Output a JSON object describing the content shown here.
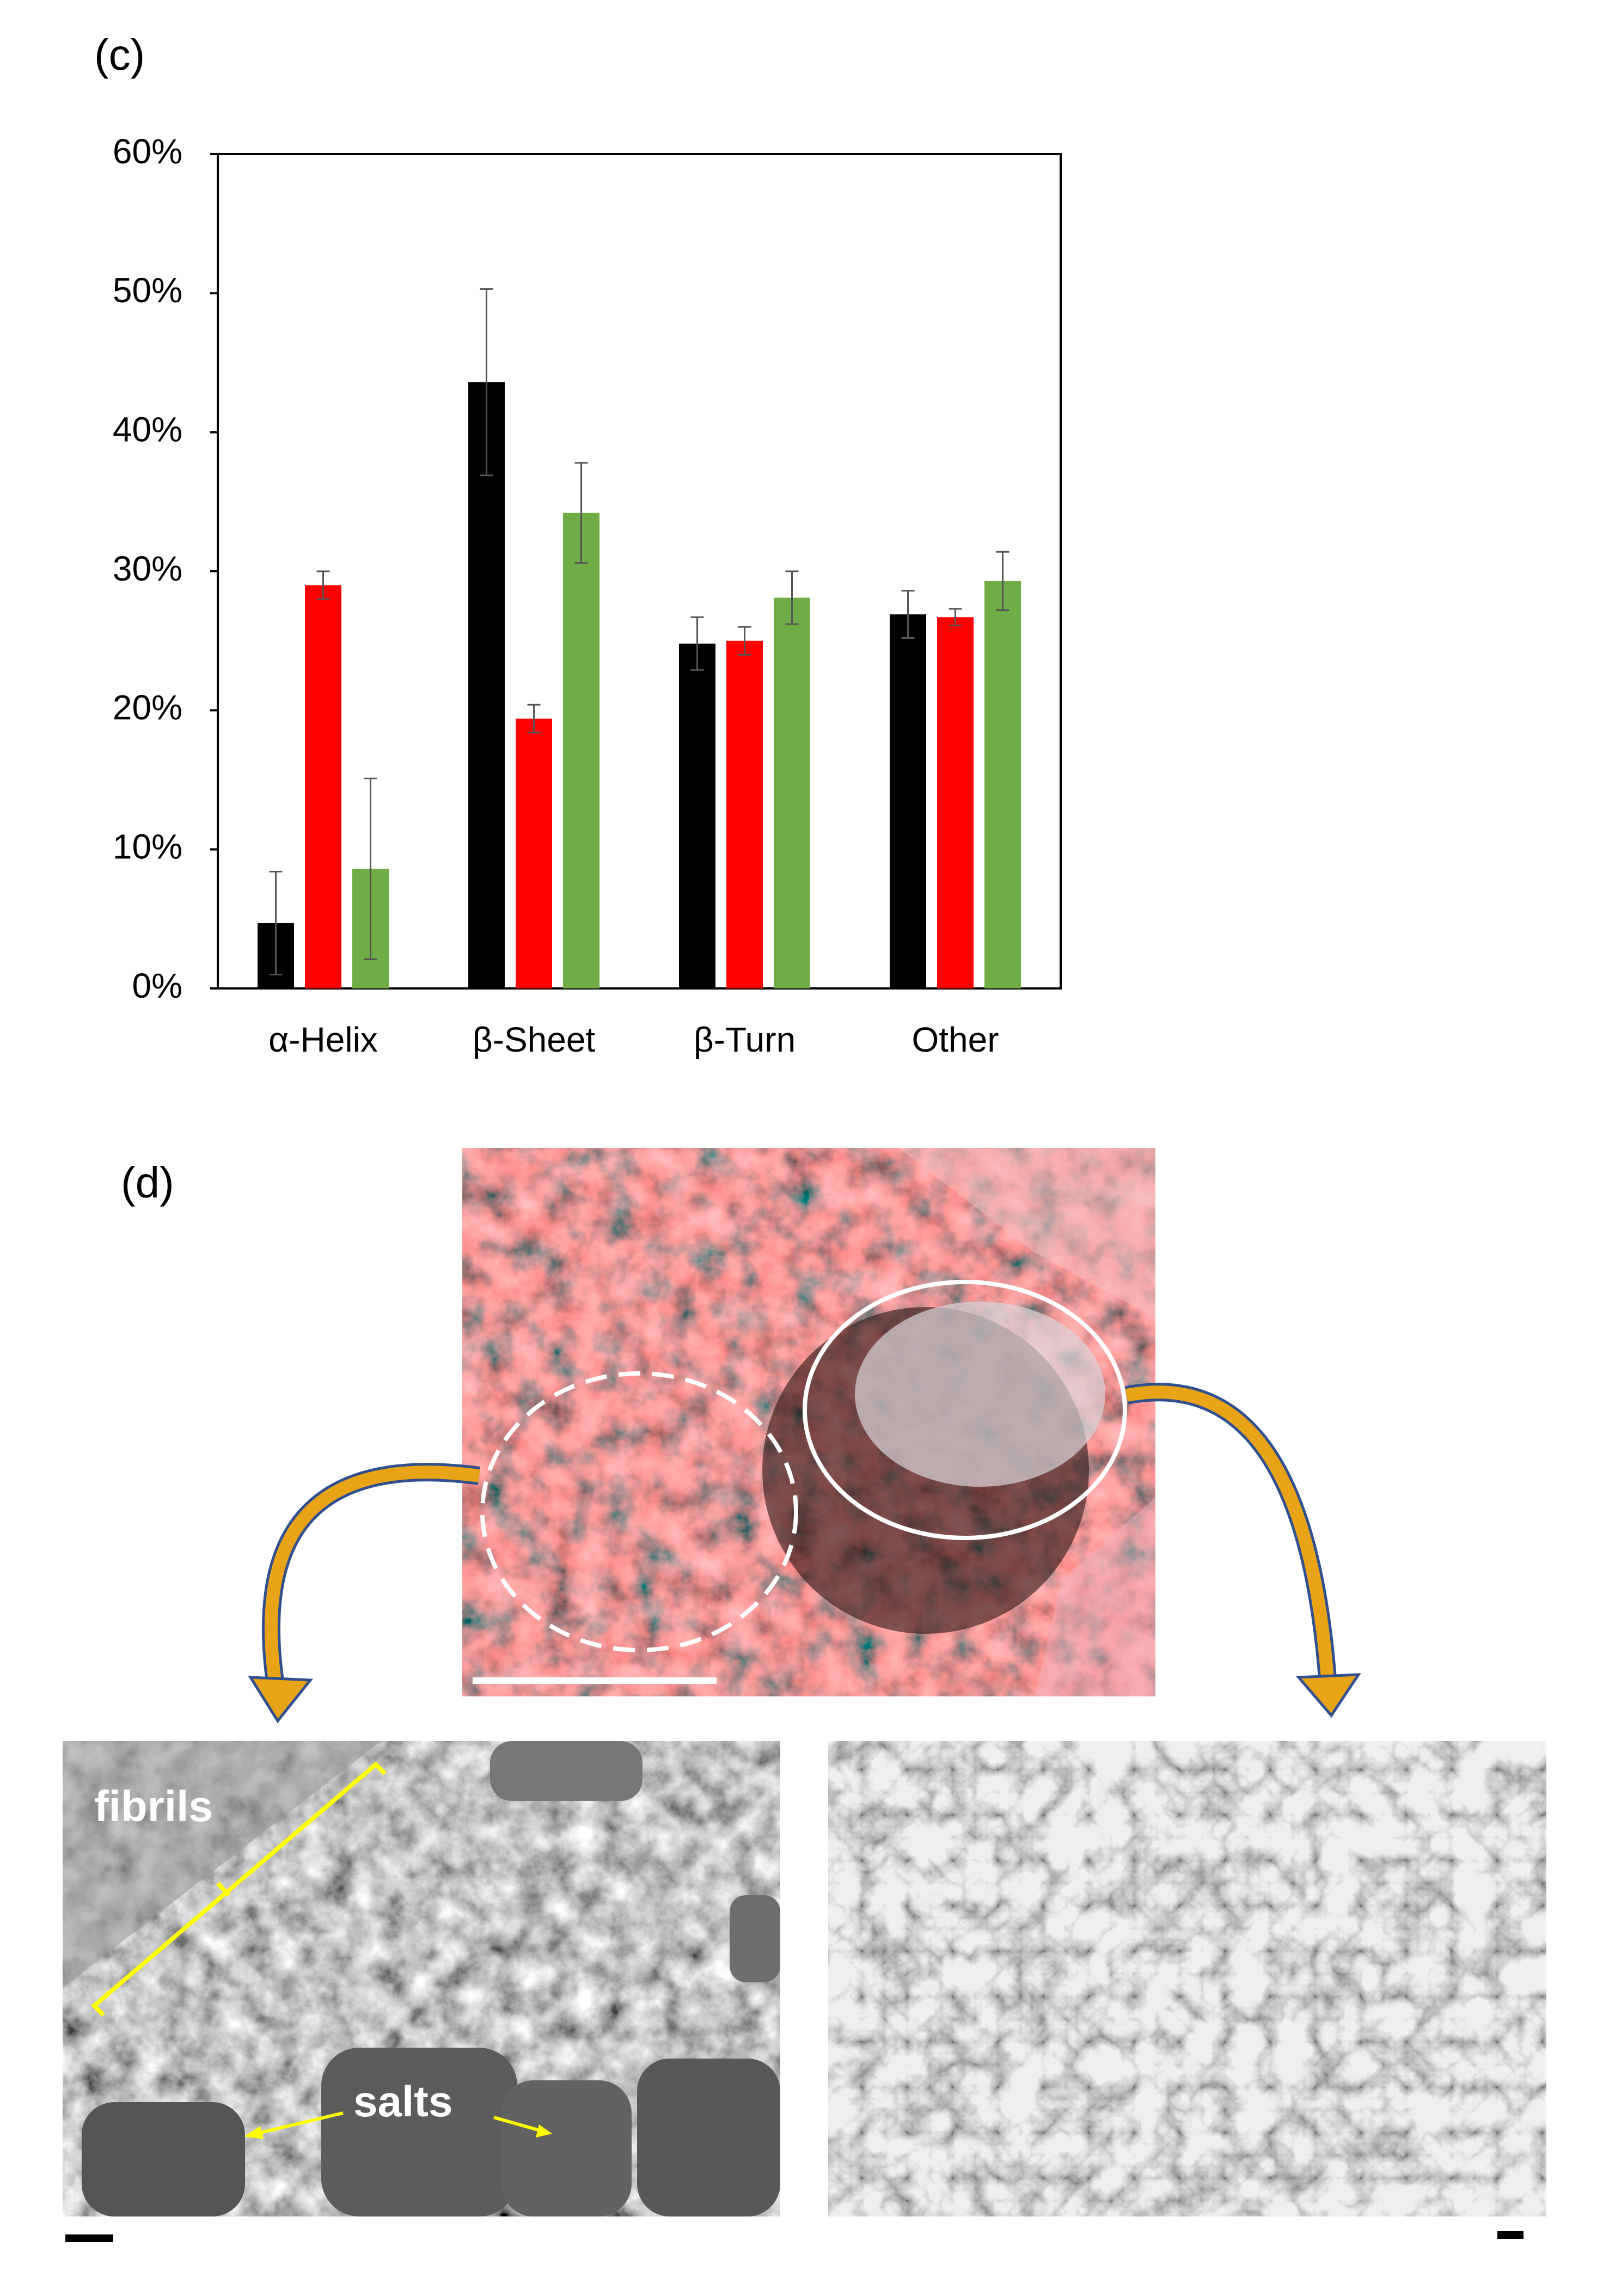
{
  "chart_data": {
    "type": "bar",
    "categories": [
      "α-Helix",
      "β-Sheet",
      "β-Turn",
      "Other"
    ],
    "series": [
      {
        "color": "#000000",
        "values": [
          4.7,
          43.6,
          24.8,
          26.9
        ],
        "errors": [
          3.7,
          6.7,
          1.9,
          1.7
        ]
      },
      {
        "color": "#ff0000",
        "values": [
          29.0,
          19.4,
          25.0,
          26.7
        ],
        "errors": [
          1.0,
          1.0,
          1.0,
          0.6
        ]
      },
      {
        "color": "#70ad47",
        "values": [
          8.6,
          34.2,
          28.1,
          29.3
        ],
        "errors": [
          6.5,
          3.6,
          1.9,
          2.1
        ]
      }
    ],
    "ylim": [
      0,
      60
    ],
    "yticks": [
      {
        "value": 0,
        "label": "0%"
      },
      {
        "value": 10,
        "label": "10%"
      },
      {
        "value": 20,
        "label": "20%"
      },
      {
        "value": 30,
        "label": "30%"
      },
      {
        "value": 40,
        "label": "40%"
      },
      {
        "value": 50,
        "label": "50%"
      },
      {
        "value": 60,
        "label": "60%"
      }
    ],
    "grid": false
  },
  "panel_labels": [
    "(c)",
    "(d)"
  ],
  "sem_left": {
    "labels": [
      "fibrils",
      "salts"
    ]
  }
}
